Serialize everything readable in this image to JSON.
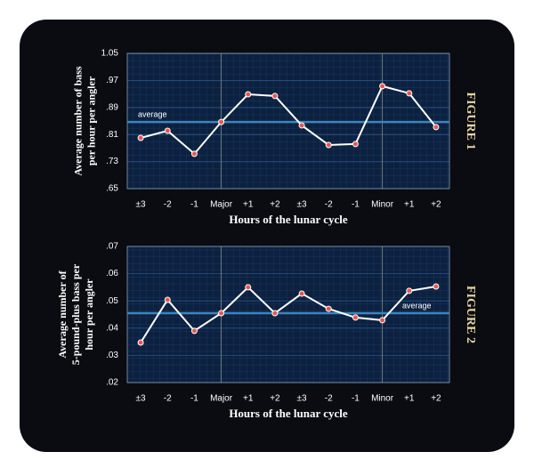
{
  "chart_data": [
    {
      "type": "line",
      "figure_label": "FIGURE 1",
      "ylabel": [
        "Average number of bass",
        "per hour per angler"
      ],
      "xlabel": "Hours of the lunar cycle",
      "categories": [
        "±3",
        "-2",
        "-1",
        "Major",
        "+1",
        "+2",
        "±3",
        "-2",
        "-1",
        "Minor",
        "+1",
        "+2"
      ],
      "values": [
        0.8,
        0.821,
        0.753,
        0.847,
        0.929,
        0.924,
        0.837,
        0.779,
        0.782,
        0.953,
        0.932,
        0.832
      ],
      "color": "#ffffff",
      "marker_color": "#e8574f",
      "average": {
        "text": "average",
        "value": 0.847
      },
      "ylim": [
        0.65,
        1.05
      ],
      "yticks": [
        {
          "value": 0.65,
          "label": ".65"
        },
        {
          "value": 0.73,
          "label": ".73"
        },
        {
          "value": 0.81,
          "label": ".81"
        },
        {
          "value": 0.89,
          "label": ".89"
        },
        {
          "value": 0.97,
          "label": ".97"
        },
        1.05
      ],
      "grid": true
    },
    {
      "type": "line",
      "figure_label": "FIGURE 2",
      "ylabel": [
        "Average number of",
        "5-pound-plus bass per",
        "hour per angler"
      ],
      "xlabel": "Hours of the lunar cycle",
      "categories": [
        "±3",
        "-2",
        "-1",
        "Major",
        "+1",
        "+2",
        "±3",
        "-2",
        "-1",
        "Minor",
        "+1",
        "+2"
      ],
      "values": [
        0.0347,
        0.0504,
        0.039,
        0.0455,
        0.055,
        0.0455,
        0.0527,
        0.0471,
        0.0439,
        0.0429,
        0.0537,
        0.0553
      ],
      "color": "#ffffff",
      "marker_color": "#e8574f",
      "average": {
        "text": "average",
        "value": 0.0455
      },
      "ylim": [
        0.02,
        0.07
      ],
      "yticks": [
        {
          "value": 0.02,
          "label": ".02"
        },
        {
          "value": 0.03,
          "label": ".03"
        },
        {
          "value": 0.04,
          "label": ".04"
        },
        {
          "value": 0.05,
          "label": ".05"
        },
        {
          "value": 0.06,
          "label": ".06"
        },
        {
          "value": 0.07,
          "label": ".07"
        }
      ],
      "grid": true
    }
  ]
}
